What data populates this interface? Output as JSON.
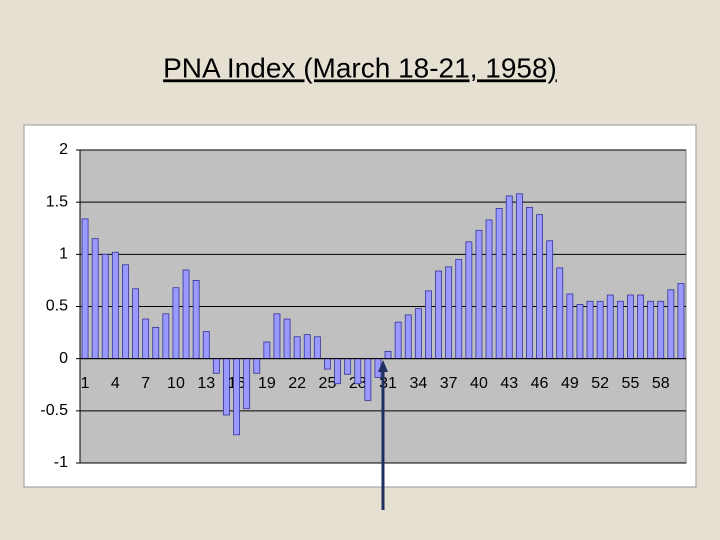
{
  "chart_data": {
    "type": "bar",
    "title": "PNA Index (March 18-21, 1958)",
    "categories": [
      "1",
      null,
      null,
      "4",
      null,
      null,
      "7",
      null,
      null,
      "10",
      null,
      null,
      "13",
      null,
      null,
      "16",
      null,
      null,
      "19",
      null,
      null,
      "22",
      null,
      null,
      "25",
      null,
      null,
      "28",
      null,
      null,
      "31",
      null,
      null,
      "34",
      null,
      null,
      "37",
      null,
      null,
      "40",
      null,
      null,
      "43",
      null,
      null,
      "46",
      null,
      null,
      "49",
      null,
      null,
      "52",
      null,
      null,
      "55",
      null,
      null,
      "58",
      null,
      null
    ],
    "values": [
      1.34,
      1.15,
      1.0,
      1.02,
      0.9,
      0.67,
      0.38,
      0.3,
      0.43,
      0.68,
      0.85,
      0.75,
      0.26,
      -0.14,
      -0.54,
      -0.73,
      -0.48,
      -0.14,
      0.16,
      0.43,
      0.38,
      0.21,
      0.23,
      0.21,
      -0.1,
      -0.24,
      -0.15,
      -0.24,
      -0.4,
      -0.18,
      0.07,
      0.35,
      0.42,
      0.48,
      0.65,
      0.84,
      0.88,
      0.95,
      1.12,
      1.23,
      1.33,
      1.44,
      1.56,
      1.58,
      1.45,
      1.38,
      1.13,
      0.87,
      0.62,
      0.52,
      0.55,
      0.55,
      0.61,
      0.55,
      0.61,
      0.61,
      0.55,
      0.55,
      0.66,
      0.72
    ],
    "color": "#9999ff",
    "ylim": [
      -1,
      2
    ],
    "yticks": [
      -1,
      -0.5,
      0,
      0.5,
      1,
      1.5,
      2
    ],
    "grid": true
  }
}
